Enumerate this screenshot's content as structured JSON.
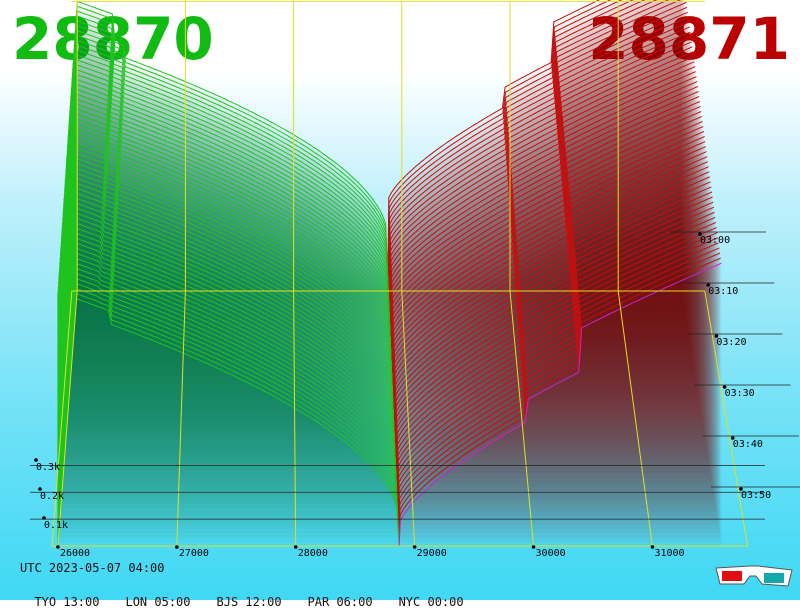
{
  "bid_price": "28870",
  "ask_price": "28871",
  "colors": {
    "bid": "#11bb11",
    "ask": "#bb0000",
    "bid_line": "#1fc41f",
    "ask_line": "#c01010",
    "grid": "#e0e020",
    "magenta": "#cc22cc",
    "axis_line": "#111111"
  },
  "utc_time": "UTC 2023-05-07 04:00",
  "timezones": [
    "TYO 13:00",
    "LON 05:00",
    "BJS 12:00",
    "PAR 06:00",
    "NYC 00:00"
  ],
  "icon": "3d-glasses-icon",
  "chart_data": {
    "type": "area",
    "x_ticks": [
      26000,
      27000,
      28000,
      29000,
      30000,
      31000
    ],
    "y_ticks": [
      "0.1k",
      "0.2k",
      "0.3k"
    ],
    "time_ticks": [
      "03:00",
      "03:10",
      "03:20",
      "03:30",
      "03:40",
      "03:50"
    ],
    "xlim": [
      25950,
      31800
    ],
    "ylim": [
      0,
      350
    ],
    "bid_price": 28870,
    "ask_price": 28871,
    "grid": true
  }
}
